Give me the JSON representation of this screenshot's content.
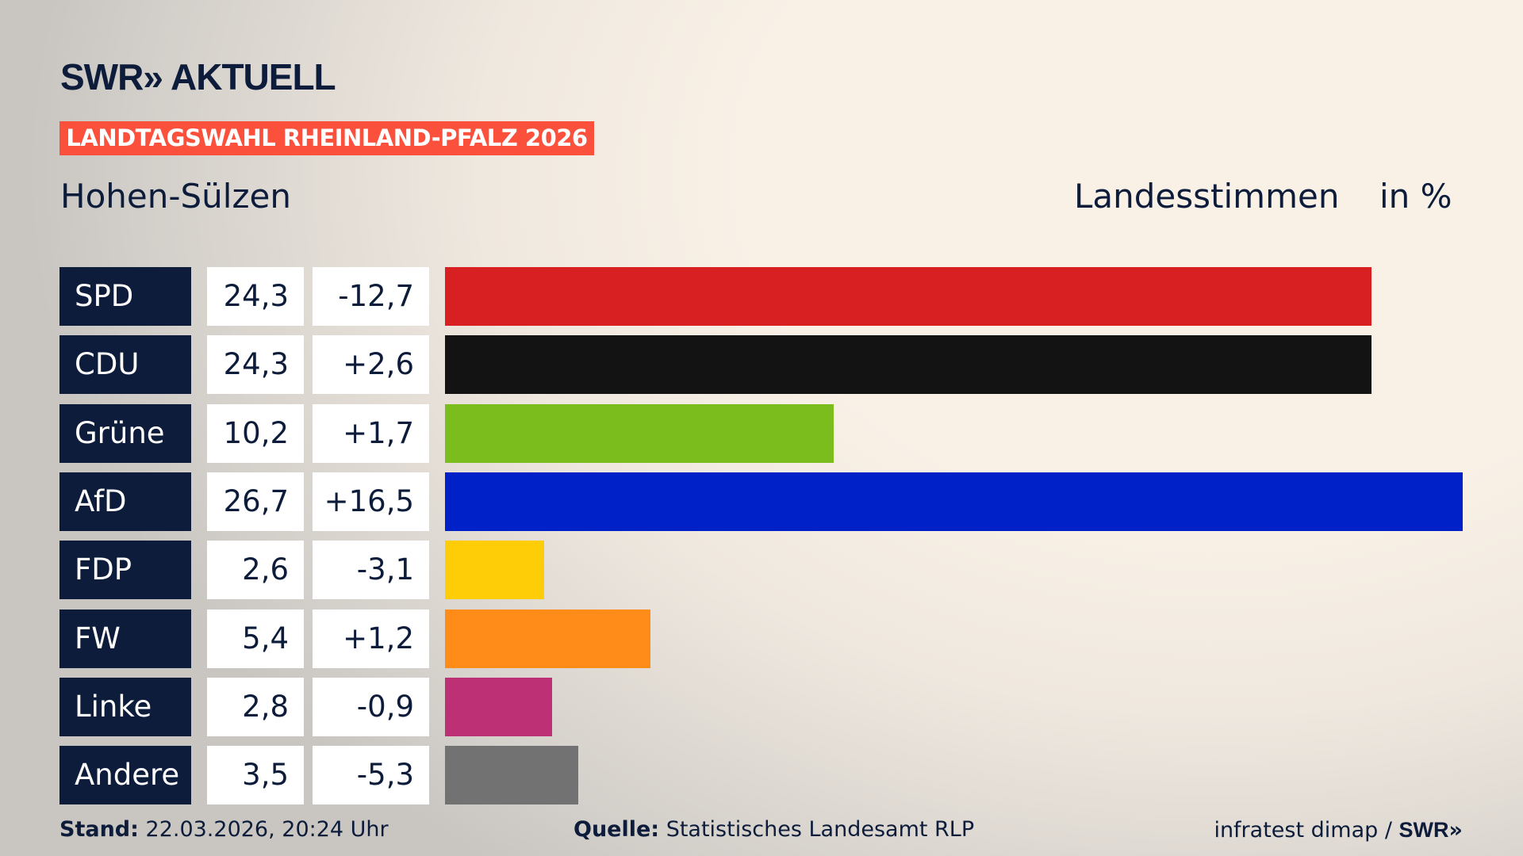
{
  "header": {
    "brand": "SWR",
    "brand_suffix": "AKTUELL",
    "banner": "LANDTAGSWAHL RHEINLAND-PFALZ 2026",
    "location": "Hohen-Sülzen",
    "measure": "Landesstimmen",
    "unit": "in %"
  },
  "chart_data": {
    "type": "bar",
    "orientation": "horizontal",
    "xlim": [
      0,
      26.7
    ],
    "categories": [
      "SPD",
      "CDU",
      "Grüne",
      "AfD",
      "FDP",
      "FW",
      "Linke",
      "Andere"
    ],
    "values": [
      24.3,
      24.3,
      10.2,
      26.7,
      2.6,
      5.4,
      2.8,
      3.5
    ],
    "value_labels": [
      "24,3",
      "24,3",
      "10,2",
      "26,7",
      "2,6",
      "5,4",
      "2,8",
      "3,5"
    ],
    "diff_labels": [
      "-12,7",
      "+2,6",
      "+1,7",
      "+16,5",
      "-3,1",
      "+1,2",
      "-0,9",
      "-5,3"
    ],
    "colors": [
      "#d81f21",
      "#131313",
      "#7abd1c",
      "#0021c8",
      "#ffcc08",
      "#ff8c19",
      "#bd3075",
      "#727272"
    ]
  },
  "footer": {
    "stand_label": "Stand:",
    "stand_value": "22.03.2026, 20:24 Uhr",
    "source_label": "Quelle:",
    "source_value": "Statistisches Landesamt RLP",
    "credit": "infratest dimap /",
    "credit_brand": "SWR"
  }
}
